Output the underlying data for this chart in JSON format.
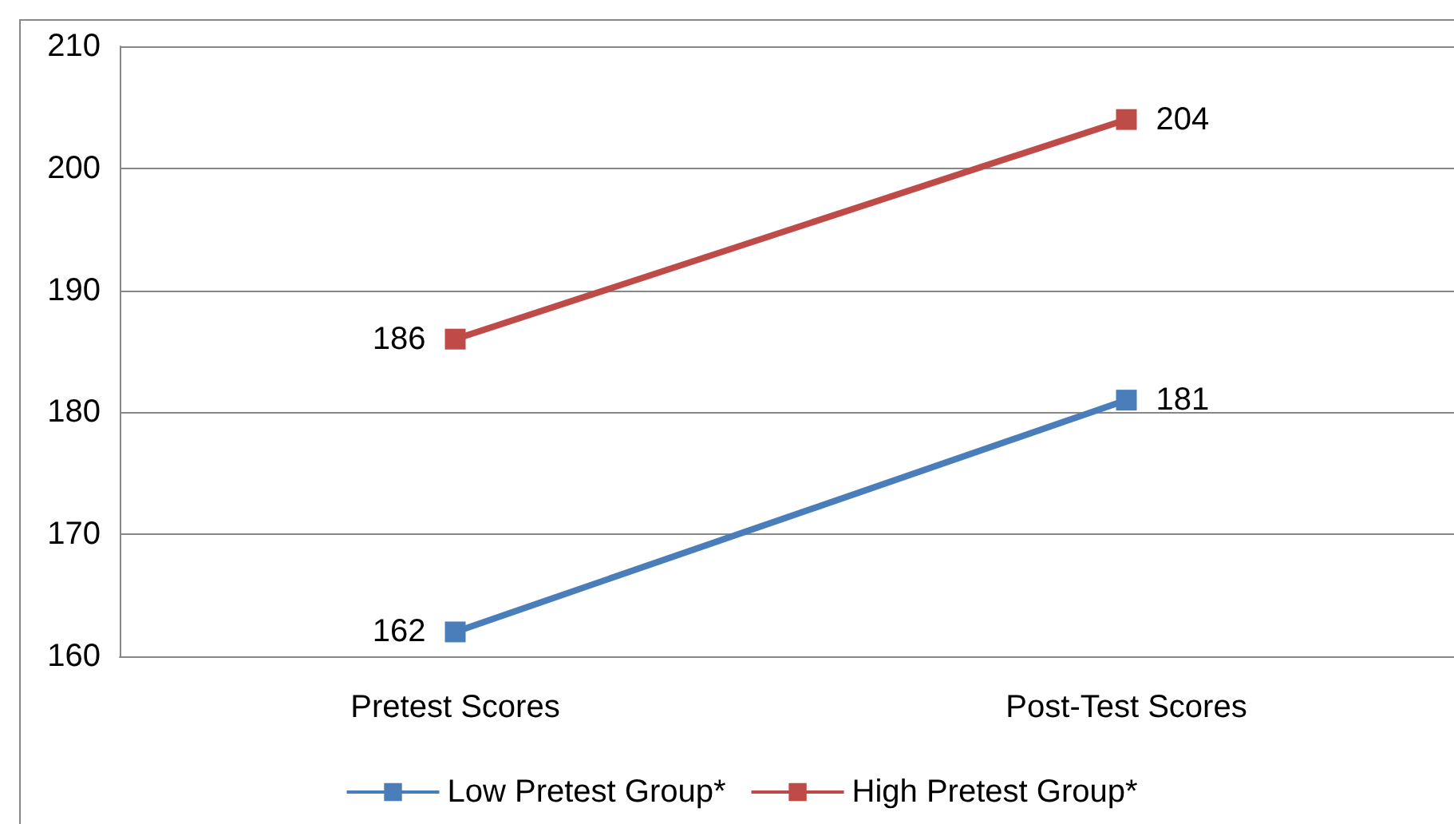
{
  "chart_data": {
    "type": "line",
    "categories": [
      "Pretest Scores",
      "Post-Test Scores"
    ],
    "series": [
      {
        "name": "Low Pretest Group*",
        "color": "#4a7ebb",
        "values": [
          162,
          181
        ]
      },
      {
        "name": "High Pretest Group*",
        "color": "#be4b48",
        "values": [
          186,
          204
        ]
      }
    ],
    "ylim": [
      160,
      210
    ],
    "yticks": [
      160,
      170,
      180,
      190,
      200,
      210
    ],
    "grid": "y",
    "legend": "bottom",
    "marker": "square",
    "line_style": "solid",
    "data_labels": true
  }
}
